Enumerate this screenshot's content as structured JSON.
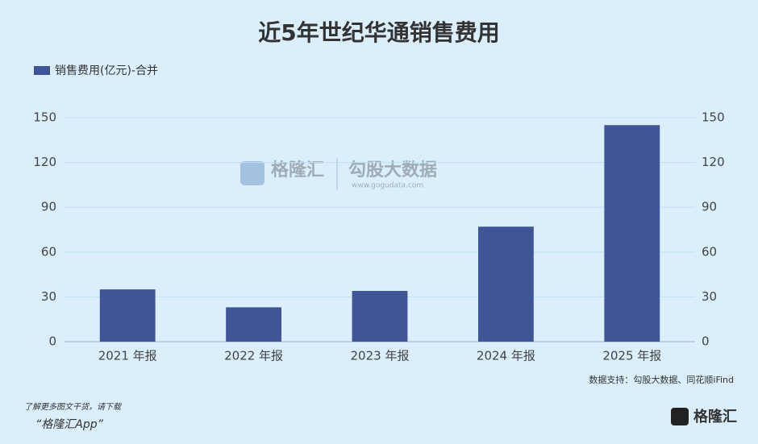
{
  "chart_data": {
    "type": "bar",
    "title": "近5年世纪华通销售费用",
    "categories": [
      "2021 年报",
      "2022 年报",
      "2023 年报",
      "2024 年报",
      "2025 年报"
    ],
    "series": [
      {
        "name": "销售费用(亿元)-合并",
        "color": "#3f5597",
        "values": [
          35,
          23,
          34,
          77,
          145
        ]
      }
    ],
    "ylim": [
      0,
      150
    ],
    "yticks": [
      0,
      30,
      60,
      90,
      120,
      150
    ],
    "y2lim": [
      0,
      150
    ],
    "y2ticks": [
      0,
      30,
      60,
      90,
      120,
      150
    ],
    "grid": true,
    "legend": "top-left",
    "source": "数据支持：勾股大数据、同花顺iFind"
  },
  "watermark": {
    "brand": "格隆汇",
    "data_brand": "勾股大数据",
    "url": "www.gogudata.com"
  },
  "footer": {
    "note": "了解更多图文干货，请下载",
    "app": "“格隆汇App”",
    "logo": "格隆汇"
  }
}
